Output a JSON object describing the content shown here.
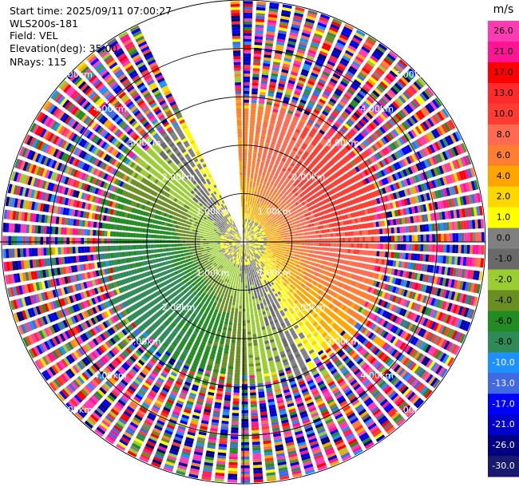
{
  "header": {
    "start_time": "Start time: 2025/09/11 07:00:27",
    "instrument": "WLS200s-181",
    "field": "Field: VEL",
    "elevation": "Elevation(deg): 35.00",
    "nrays": "NRays: 115"
  },
  "colorbar": {
    "unit": "m/s",
    "ticks": [
      "26.0",
      "21.0",
      "17.0",
      "13.0",
      "10.0",
      "8.0",
      "6.0",
      "4.0",
      "2.0",
      "1.0",
      "0.0",
      "-1.0",
      "-2.0",
      "-4.0",
      "-6.0",
      "-8.0",
      "-10.0",
      "-13.0",
      "-17.0",
      "-21.0",
      "-26.0",
      "-30.0"
    ],
    "colors": [
      "#ff3bb4",
      "#ff1493",
      "#ff0000",
      "#ff2a2a",
      "#ff3c32",
      "#ff6a50",
      "#ff7f32",
      "#ffa500",
      "#ffd700",
      "#ffff00",
      "#808080",
      "#696969",
      "#9acd32",
      "#6b8e23",
      "#228b22",
      "#2e8b57",
      "#1e90ff",
      "#4169e1",
      "#0000ff",
      "#0000cd",
      "#000080",
      "#191970"
    ]
  },
  "chart_data": {
    "type": "ppi",
    "field": "VEL",
    "units": "m/s",
    "elevation_deg": 35.0,
    "n_rays": 115,
    "range_ring_labels": [
      "1.00km",
      "2.00km",
      "3.00km",
      "4.00km",
      "5.00km"
    ],
    "max_range_km": 5.0,
    "blank_sector_deg": [
      335,
      355
    ],
    "wind_pattern": "positive velocities (yellow/orange/red) toward the north and east, negative velocities (green/gray) toward the south and west, noisy multicolour data beyond ~3 km"
  }
}
